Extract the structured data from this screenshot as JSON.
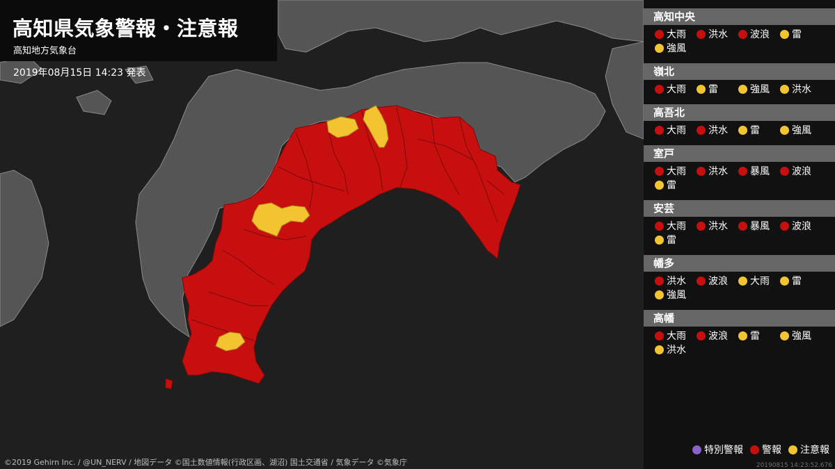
{
  "header": {
    "title": "高知県気象警報・注意報",
    "subtitle": "高知地方気象台",
    "issued": "2019年08月15日 14:23 発表"
  },
  "credit": "©2019 Gehirn Inc. / @UN_NERV / 地図データ ©国土数値情報(行政区画、湖沼) 国土交通省 / 気象データ ©気象庁",
  "colors": {
    "warning": "#c80f0f",
    "advisory": "#f2c530",
    "special": "#8a63c9",
    "land": "#555555",
    "sea": "#1f1f1f",
    "panel": "#111111"
  },
  "regions": [
    {
      "name": "高知中央",
      "alerts": [
        {
          "label": "大雨",
          "level": "warning"
        },
        {
          "label": "洪水",
          "level": "warning"
        },
        {
          "label": "波浪",
          "level": "warning"
        },
        {
          "label": "雷",
          "level": "advisory"
        },
        {
          "label": "強風",
          "level": "advisory"
        }
      ]
    },
    {
      "name": "嶺北",
      "alerts": [
        {
          "label": "大雨",
          "level": "warning"
        },
        {
          "label": "雷",
          "level": "advisory"
        },
        {
          "label": "強風",
          "level": "advisory"
        },
        {
          "label": "洪水",
          "level": "advisory"
        }
      ]
    },
    {
      "name": "高吾北",
      "alerts": [
        {
          "label": "大雨",
          "level": "warning"
        },
        {
          "label": "洪水",
          "level": "warning"
        },
        {
          "label": "雷",
          "level": "advisory"
        },
        {
          "label": "強風",
          "level": "advisory"
        }
      ]
    },
    {
      "name": "室戸",
      "alerts": [
        {
          "label": "大雨",
          "level": "warning"
        },
        {
          "label": "洪水",
          "level": "warning"
        },
        {
          "label": "暴風",
          "level": "warning"
        },
        {
          "label": "波浪",
          "level": "warning"
        },
        {
          "label": "雷",
          "level": "advisory"
        }
      ]
    },
    {
      "name": "安芸",
      "alerts": [
        {
          "label": "大雨",
          "level": "warning"
        },
        {
          "label": "洪水",
          "level": "warning"
        },
        {
          "label": "暴風",
          "level": "warning"
        },
        {
          "label": "波浪",
          "level": "warning"
        },
        {
          "label": "雷",
          "level": "advisory"
        }
      ]
    },
    {
      "name": "幡多",
      "alerts": [
        {
          "label": "洪水",
          "level": "warning"
        },
        {
          "label": "波浪",
          "level": "warning"
        },
        {
          "label": "大雨",
          "level": "advisory"
        },
        {
          "label": "雷",
          "level": "advisory"
        },
        {
          "label": "強風",
          "level": "advisory"
        }
      ]
    },
    {
      "name": "高幡",
      "alerts": [
        {
          "label": "大雨",
          "level": "warning"
        },
        {
          "label": "波浪",
          "level": "warning"
        },
        {
          "label": "雷",
          "level": "advisory"
        },
        {
          "label": "強風",
          "level": "advisory"
        },
        {
          "label": "洪水",
          "level": "advisory"
        }
      ]
    }
  ],
  "legend": [
    {
      "label": "特別警報",
      "level": "special"
    },
    {
      "label": "警報",
      "level": "warning"
    },
    {
      "label": "注意報",
      "level": "advisory"
    }
  ],
  "timestamp": "20190815 14:23:52.676"
}
